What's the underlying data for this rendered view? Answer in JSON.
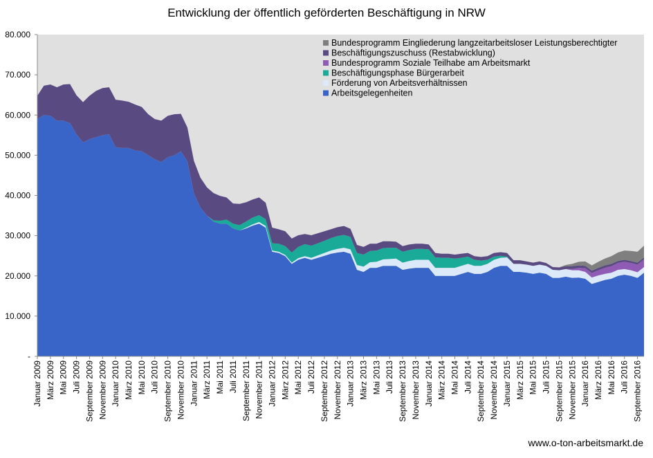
{
  "chart_data": {
    "type": "area",
    "stacked": true,
    "title": "Entwicklung  der öffentlich geförderten Beschäftigung in NRW",
    "source": "www.o-ton-arbeitsmarkt.de",
    "ylim": [
      0,
      80000
    ],
    "yticks": [
      "-",
      "10.000",
      "20.000",
      "30.000",
      "40.000",
      "50.000",
      "60.000",
      "70.000",
      "80.000"
    ],
    "xtick_labels": [
      "Januar 2009",
      "März 2009",
      "Mai 2009",
      "Juli 2009",
      "September 2009",
      "November 2009",
      "Januar 2010",
      "März 2010",
      "Mai 2010",
      "Juli 2010",
      "September 2010",
      "November 2010",
      "Januar 2011",
      "März 2011",
      "Mai 2011",
      "Juli 2011",
      "September 2011",
      "November 2011",
      "Januar 2012",
      "März 2012",
      "Mai 2012",
      "Juli 2012",
      "September 2012",
      "November 2012",
      "Januar 2013",
      "März 2013",
      "Mai 2013",
      "Juli 2013",
      "September 2013",
      "November 2013",
      "Januar 2014",
      "März 2014",
      "Mai 2014",
      "Juli 2014",
      "September 2014",
      "November 2014",
      "Januar 2015",
      "März 2015",
      "Mai 2015",
      "Juli 2015",
      "September 2015",
      "November 2015",
      "Januar 2016",
      "März 2016",
      "Mai 2016",
      "Juli 2016",
      "September 2016"
    ],
    "grid": false,
    "background": "#e0e0e0",
    "legend_position": "top-right",
    "series": [
      {
        "name": "Arbeitsgelegenheiten",
        "color": "#3a65c8",
        "values": [
          59000,
          60000,
          59800,
          58600,
          58600,
          58000,
          55200,
          53200,
          54000,
          54500,
          55000,
          55200,
          52000,
          51800,
          51800,
          51200,
          51000,
          50000,
          49000,
          48300,
          49500,
          50000,
          51000,
          48500,
          40500,
          37000,
          35000,
          33500,
          33000,
          33000,
          31800,
          31300,
          31800,
          32500,
          33000,
          32000,
          26000,
          25700,
          24900,
          23000,
          24000,
          24500,
          24000,
          24500,
          25000,
          25500,
          25800,
          26000,
          25500,
          21500,
          21000,
          22000,
          22000,
          22500,
          22500,
          22500,
          21500,
          21800,
          22000,
          22000,
          22000,
          20000,
          20000,
          20000,
          20000,
          20500,
          21000,
          20500,
          20500,
          21000,
          22000,
          22500,
          22500,
          21000,
          21000,
          20800,
          20500,
          20800,
          20500,
          19500,
          19500,
          19800,
          19500,
          19600,
          19300,
          18000,
          18500,
          19000,
          19300,
          20000,
          20300,
          20000,
          19500,
          20800
        ]
      },
      {
        "name": "Förderung von Arbeitsverhältnissen",
        "color": "#dbe9f9",
        "values": [
          0,
          0,
          0,
          0,
          0,
          0,
          0,
          0,
          0,
          0,
          0,
          0,
          0,
          0,
          0,
          0,
          0,
          0,
          0,
          0,
          0,
          0,
          0,
          0,
          0,
          0,
          0,
          0,
          0,
          0,
          0,
          0,
          200,
          300,
          400,
          400,
          300,
          300,
          300,
          300,
          400,
          400,
          500,
          600,
          700,
          800,
          900,
          1000,
          1100,
          1200,
          1300,
          1400,
          1500,
          1600,
          1700,
          1800,
          1800,
          1900,
          2000,
          2000,
          2000,
          2000,
          2000,
          2000,
          2000,
          2000,
          2000,
          2000,
          2000,
          2000,
          2000,
          2000,
          2100,
          2000,
          2000,
          2000,
          2000,
          2000,
          2000,
          2000,
          1900,
          1900,
          1900,
          1800,
          1700,
          1600,
          1600,
          1500,
          1500,
          1500,
          1400,
          1400,
          1400,
          1400
        ]
      },
      {
        "name": "Beschäftigungsphase Bürgerarbeit",
        "color": "#1aaa98",
        "values": [
          0,
          0,
          0,
          0,
          0,
          0,
          0,
          0,
          0,
          0,
          0,
          0,
          0,
          0,
          0,
          0,
          0,
          0,
          0,
          0,
          0,
          0,
          0,
          0,
          0,
          0,
          0,
          300,
          700,
          1000,
          1200,
          1300,
          1500,
          1700,
          1700,
          1700,
          1800,
          2000,
          2200,
          2500,
          2800,
          3000,
          3000,
          3000,
          3000,
          3100,
          3200,
          3200,
          3100,
          3000,
          3000,
          2800,
          2800,
          2800,
          2800,
          2700,
          2700,
          2700,
          2700,
          2700,
          2600,
          2600,
          2500,
          2500,
          2300,
          2000,
          1800,
          1500,
          1300,
          1000,
          800,
          500,
          200,
          0,
          0,
          0,
          0,
          0,
          0,
          0,
          0,
          0,
          0,
          0,
          0,
          0,
          0,
          0,
          0,
          0,
          0,
          0,
          0,
          0
        ]
      },
      {
        "name": "Bundesprogramm Soziale Teilhabe am Arbeitsmarkt",
        "color": "#8f5bb4",
        "values": [
          0,
          0,
          0,
          0,
          0,
          0,
          0,
          0,
          0,
          0,
          0,
          0,
          0,
          0,
          0,
          0,
          0,
          0,
          0,
          0,
          0,
          0,
          0,
          0,
          0,
          0,
          0,
          0,
          0,
          0,
          0,
          0,
          0,
          0,
          0,
          0,
          0,
          0,
          0,
          0,
          0,
          0,
          0,
          0,
          0,
          0,
          0,
          0,
          0,
          0,
          0,
          0,
          0,
          0,
          0,
          0,
          0,
          0,
          0,
          0,
          0,
          0,
          0,
          0,
          0,
          0,
          0,
          0,
          0,
          0,
          0,
          0,
          0,
          0,
          0,
          0,
          0,
          0,
          0,
          0,
          0,
          0,
          300,
          600,
          900,
          1100,
          1300,
          1500,
          1600,
          1700,
          1800,
          1800,
          1900,
          1900
        ]
      },
      {
        "name": "Beschäftigungszuschuss (Restabwicklung)",
        "color": "#5a4a82",
        "values": [
          5800,
          7300,
          7800,
          8300,
          9000,
          9700,
          9700,
          10000,
          10800,
          11500,
          11700,
          11700,
          11800,
          11800,
          11500,
          11400,
          11000,
          10200,
          10000,
          10300,
          10300,
          10200,
          9300,
          8400,
          8100,
          7400,
          7000,
          6800,
          6200,
          5500,
          5000,
          5300,
          4800,
          4500,
          4400,
          4100,
          3900,
          3600,
          3700,
          3500,
          2900,
          2500,
          2600,
          2500,
          2400,
          2200,
          2200,
          2200,
          2000,
          2000,
          1900,
          1800,
          1700,
          1700,
          1600,
          1500,
          1400,
          1400,
          1300,
          1300,
          1200,
          1100,
          1000,
          1000,
          1000,
          1000,
          900,
          900,
          900,
          900,
          900,
          900,
          900,
          900,
          900,
          800,
          800,
          800,
          700,
          700,
          700,
          700,
          700,
          600,
          600,
          600,
          600,
          600,
          600,
          500,
          500,
          500,
          500,
          500
        ]
      },
      {
        "name": "Bundesprogramm Eingliederung langzeitarbeitsloser Leistungsberechtigter",
        "color": "#7f7f7f",
        "values": [
          0,
          0,
          0,
          0,
          0,
          0,
          0,
          0,
          0,
          0,
          0,
          0,
          0,
          0,
          0,
          0,
          0,
          0,
          0,
          0,
          0,
          0,
          0,
          0,
          0,
          0,
          0,
          0,
          0,
          0,
          0,
          0,
          0,
          0,
          0,
          0,
          0,
          0,
          0,
          0,
          0,
          0,
          0,
          0,
          0,
          0,
          0,
          0,
          0,
          0,
          0,
          0,
          0,
          0,
          0,
          0,
          0,
          0,
          0,
          0,
          0,
          0,
          0,
          0,
          0,
          0,
          0,
          0,
          0,
          0,
          0,
          0,
          0,
          0,
          0,
          0,
          0,
          0,
          0,
          0,
          0,
          300,
          600,
          900,
          1100,
          1300,
          1500,
          1700,
          1900,
          2100,
          2300,
          2500,
          2700,
          2900
        ]
      }
    ]
  }
}
